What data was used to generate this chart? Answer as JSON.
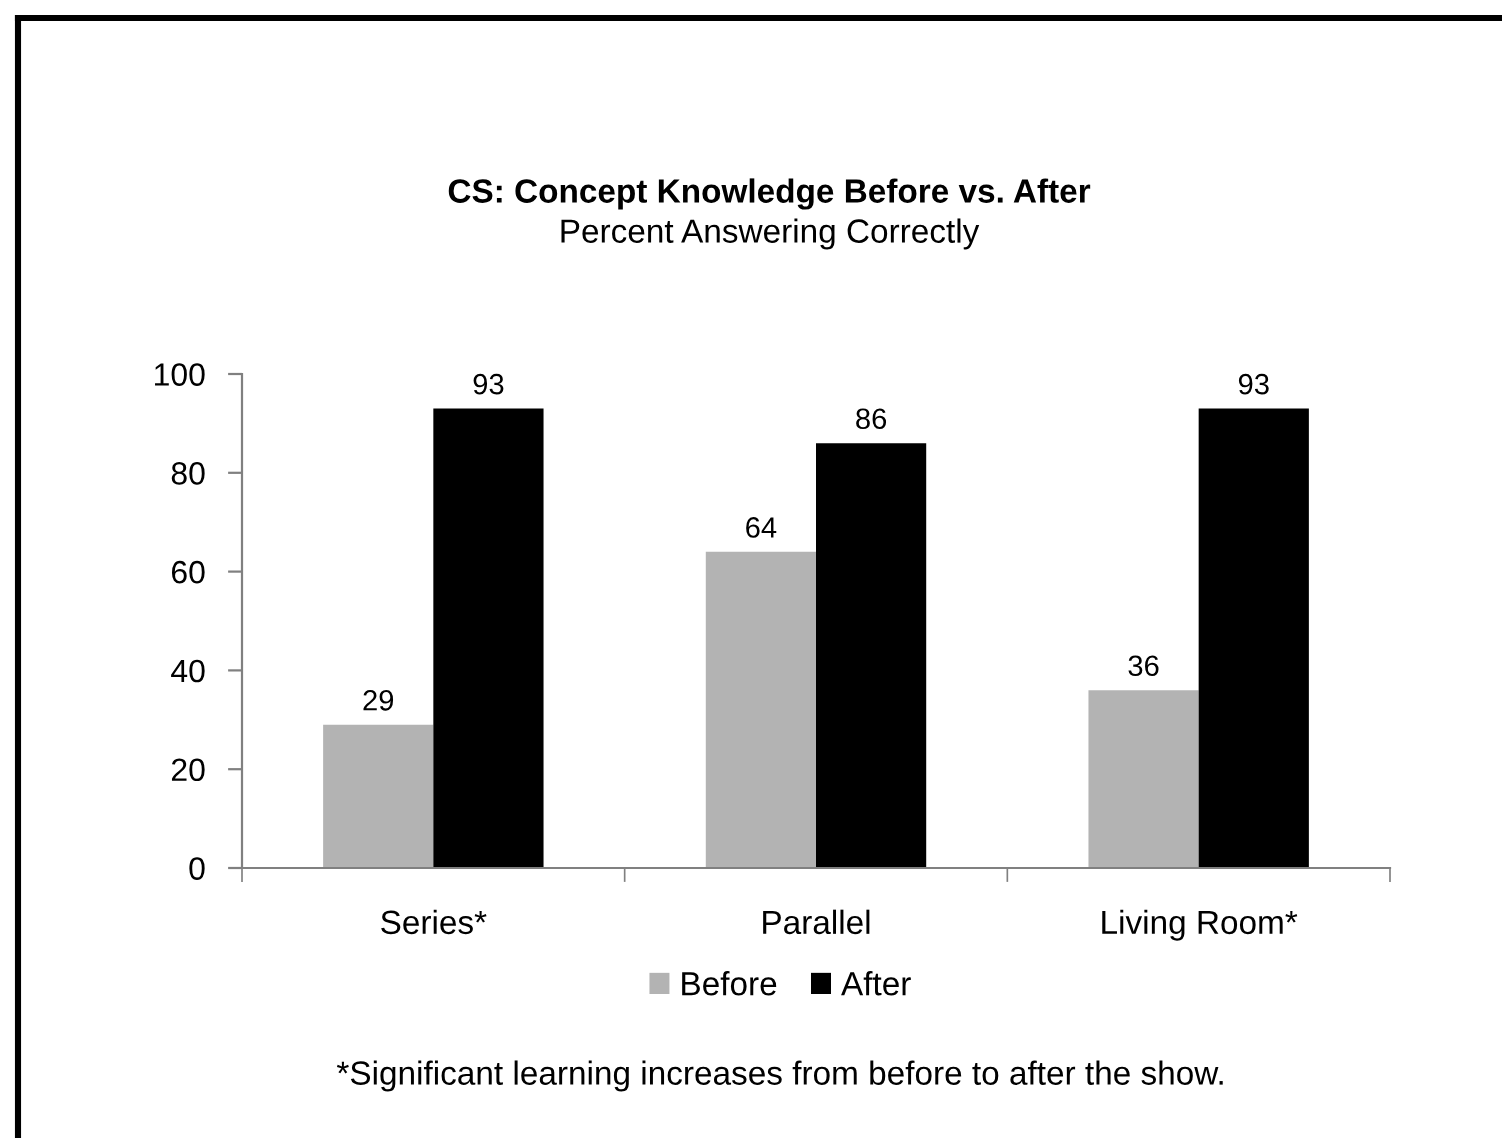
{
  "chart_data": {
    "type": "bar",
    "title": "CS: Concept Knowledge Before vs. After",
    "subtitle": "Percent Answering Correctly",
    "categories": [
      "Series*",
      "Parallel",
      "Living Room*"
    ],
    "series": [
      {
        "name": "Before",
        "color": "#b3b3b3",
        "values": [
          29,
          64,
          36
        ]
      },
      {
        "name": "After",
        "color": "#000000",
        "values": [
          93,
          86,
          93
        ]
      }
    ],
    "ylim": [
      0,
      100
    ],
    "yticks": [
      0,
      20,
      40,
      60,
      80,
      100
    ],
    "data_labels": true,
    "legend": "bottom",
    "grid": false,
    "annotations": [
      "*Significant learning increases from before to after the show."
    ]
  }
}
